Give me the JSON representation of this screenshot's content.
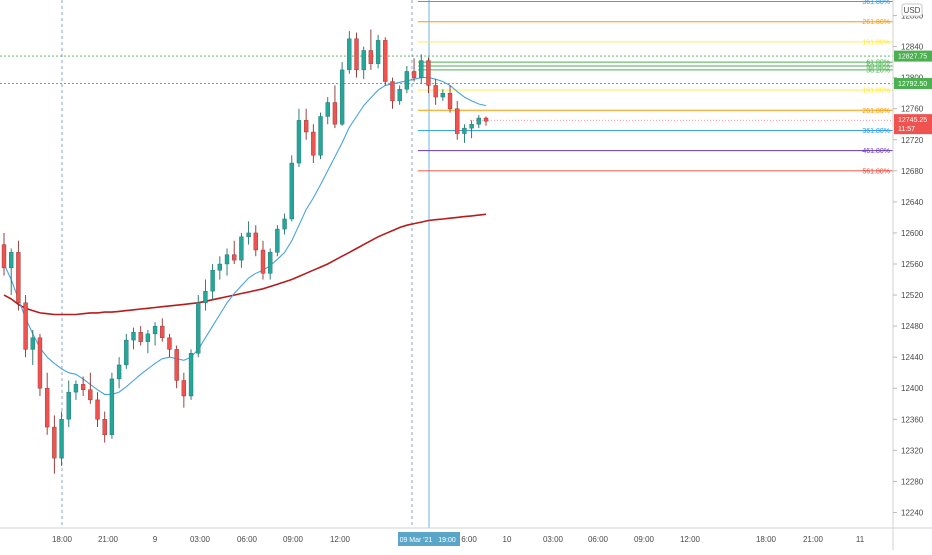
{
  "currency_label": "USD",
  "x_tick_labels": [
    "18:00",
    "21:00",
    "9",
    "03:00",
    "06:00",
    "09:00",
    "12:00",
    "19:00",
    "10",
    "03:00",
    "06:00",
    "09:00",
    "12:00",
    "18:00",
    "21:00",
    "11"
  ],
  "x_highlight_label": "09 Mar '21",
  "x_partial_label": "6:00",
  "colors": {
    "up": "#26a69a",
    "down": "#ef5350",
    "ma_fast": "#4aa3df",
    "ma_slow": "#b71c1c",
    "fib_blue": "#2196f3",
    "fib_orange": "#ff9800",
    "fib_yellow": "#ffeb3b",
    "fib_green": "#4caf50",
    "fib_purple": "#673ab7",
    "fib_red": "#f44336",
    "price_tag": "#ef5350",
    "tag_green": "#4caf50",
    "tag_blue": "#5aa6c9"
  },
  "chart_data": {
    "type": "candlestick",
    "symbol_currency": "USD",
    "ylim": [
      12220,
      12900
    ],
    "y_ticks": [
      12240,
      12280,
      12320,
      12360,
      12400,
      12440,
      12480,
      12520,
      12560,
      12600,
      12640,
      12680,
      12720,
      12760,
      12800,
      12840,
      12880
    ],
    "candles": [
      {
        "o": 12585,
        "h": 12600,
        "l": 12545,
        "c": 12555
      },
      {
        "o": 12555,
        "h": 12580,
        "l": 12520,
        "c": 12575
      },
      {
        "o": 12575,
        "h": 12590,
        "l": 12500,
        "c": 12510
      },
      {
        "o": 12510,
        "h": 12520,
        "l": 12440,
        "c": 12450
      },
      {
        "o": 12450,
        "h": 12475,
        "l": 12430,
        "c": 12465
      },
      {
        "o": 12465,
        "h": 12470,
        "l": 12390,
        "c": 12400
      },
      {
        "o": 12400,
        "h": 12420,
        "l": 12340,
        "c": 12350
      },
      {
        "o": 12350,
        "h": 12365,
        "l": 12290,
        "c": 12310
      },
      {
        "o": 12310,
        "h": 12370,
        "l": 12300,
        "c": 12360
      },
      {
        "o": 12360,
        "h": 12410,
        "l": 12350,
        "c": 12395
      },
      {
        "o": 12395,
        "h": 12410,
        "l": 12385,
        "c": 12405
      },
      {
        "o": 12405,
        "h": 12415,
        "l": 12390,
        "c": 12398
      },
      {
        "o": 12398,
        "h": 12420,
        "l": 12380,
        "c": 12385
      },
      {
        "o": 12385,
        "h": 12395,
        "l": 12350,
        "c": 12360
      },
      {
        "o": 12360,
        "h": 12370,
        "l": 12330,
        "c": 12340
      },
      {
        "o": 12340,
        "h": 12420,
        "l": 12335,
        "c": 12412
      },
      {
        "o": 12412,
        "h": 12440,
        "l": 12400,
        "c": 12430
      },
      {
        "o": 12430,
        "h": 12470,
        "l": 12425,
        "c": 12462
      },
      {
        "o": 12462,
        "h": 12478,
        "l": 12450,
        "c": 12472
      },
      {
        "o": 12472,
        "h": 12480,
        "l": 12455,
        "c": 12460
      },
      {
        "o": 12460,
        "h": 12475,
        "l": 12445,
        "c": 12470
      },
      {
        "o": 12470,
        "h": 12485,
        "l": 12455,
        "c": 12480
      },
      {
        "o": 12480,
        "h": 12490,
        "l": 12460,
        "c": 12465
      },
      {
        "o": 12465,
        "h": 12470,
        "l": 12440,
        "c": 12450
      },
      {
        "o": 12450,
        "h": 12455,
        "l": 12400,
        "c": 12410
      },
      {
        "o": 12410,
        "h": 12420,
        "l": 12375,
        "c": 12390
      },
      {
        "o": 12390,
        "h": 12450,
        "l": 12385,
        "c": 12445
      },
      {
        "o": 12445,
        "h": 12520,
        "l": 12440,
        "c": 12510
      },
      {
        "o": 12510,
        "h": 12540,
        "l": 12500,
        "c": 12525
      },
      {
        "o": 12525,
        "h": 12560,
        "l": 12515,
        "c": 12552
      },
      {
        "o": 12552,
        "h": 12570,
        "l": 12540,
        "c": 12560
      },
      {
        "o": 12560,
        "h": 12580,
        "l": 12545,
        "c": 12572
      },
      {
        "o": 12572,
        "h": 12590,
        "l": 12560,
        "c": 12565
      },
      {
        "o": 12565,
        "h": 12600,
        "l": 12555,
        "c": 12595
      },
      {
        "o": 12595,
        "h": 12615,
        "l": 12585,
        "c": 12600
      },
      {
        "o": 12600,
        "h": 12610,
        "l": 12570,
        "c": 12578
      },
      {
        "o": 12578,
        "h": 12590,
        "l": 12540,
        "c": 12548
      },
      {
        "o": 12548,
        "h": 12580,
        "l": 12540,
        "c": 12575
      },
      {
        "o": 12575,
        "h": 12610,
        "l": 12570,
        "c": 12605
      },
      {
        "o": 12605,
        "h": 12625,
        "l": 12598,
        "c": 12618
      },
      {
        "o": 12618,
        "h": 12700,
        "l": 12615,
        "c": 12690
      },
      {
        "o": 12690,
        "h": 12760,
        "l": 12685,
        "c": 12745
      },
      {
        "o": 12745,
        "h": 12760,
        "l": 12720,
        "c": 12730
      },
      {
        "o": 12730,
        "h": 12740,
        "l": 12690,
        "c": 12700
      },
      {
        "o": 12700,
        "h": 12755,
        "l": 12695,
        "c": 12750
      },
      {
        "o": 12750,
        "h": 12775,
        "l": 12740,
        "c": 12768
      },
      {
        "o": 12768,
        "h": 12790,
        "l": 12735,
        "c": 12740
      },
      {
        "o": 12740,
        "h": 12820,
        "l": 12738,
        "c": 12810
      },
      {
        "o": 12810,
        "h": 12860,
        "l": 12805,
        "c": 12850
      },
      {
        "o": 12850,
        "h": 12858,
        "l": 12800,
        "c": 12810
      },
      {
        "o": 12810,
        "h": 12840,
        "l": 12798,
        "c": 12835
      },
      {
        "o": 12835,
        "h": 12862,
        "l": 12810,
        "c": 12818
      },
      {
        "o": 12818,
        "h": 12855,
        "l": 12812,
        "c": 12848
      },
      {
        "o": 12848,
        "h": 12852,
        "l": 12790,
        "c": 12795
      },
      {
        "o": 12795,
        "h": 12800,
        "l": 12760,
        "c": 12770
      },
      {
        "o": 12770,
        "h": 12790,
        "l": 12765,
        "c": 12785
      },
      {
        "o": 12785,
        "h": 12815,
        "l": 12780,
        "c": 12808
      },
      {
        "o": 12808,
        "h": 12825,
        "l": 12795,
        "c": 12800
      },
      {
        "o": 12800,
        "h": 12830,
        "l": 12792,
        "c": 12822
      },
      {
        "o": 12822,
        "h": 12826,
        "l": 12780,
        "c": 12790
      },
      {
        "o": 12790,
        "h": 12798,
        "l": 12765,
        "c": 12775
      },
      {
        "o": 12775,
        "h": 12785,
        "l": 12770,
        "c": 12780
      },
      {
        "o": 12780,
        "h": 12790,
        "l": 12755,
        "c": 12760
      },
      {
        "o": 12760,
        "h": 12770,
        "l": 12720,
        "c": 12728
      },
      {
        "o": 12728,
        "h": 12740,
        "l": 12716,
        "c": 12735
      },
      {
        "o": 12735,
        "h": 12745,
        "l": 12722,
        "c": 12740
      },
      {
        "o": 12740,
        "h": 12752,
        "l": 12735,
        "c": 12748
      },
      {
        "o": 12748,
        "h": 12750,
        "l": 12738,
        "c": 12744
      }
    ],
    "ma_fast": [
      12560,
      12540,
      12515,
      12490,
      12470,
      12452,
      12440,
      12432,
      12425,
      12420,
      12418,
      12412,
      12405,
      12398,
      12392,
      12392,
      12395,
      12402,
      12410,
      12418,
      12425,
      12432,
      12438,
      12440,
      12438,
      12436,
      12440,
      12450,
      12465,
      12480,
      12495,
      12510,
      12522,
      12532,
      12542,
      12548,
      12552,
      12558,
      12566,
      12575,
      12590,
      12610,
      12630,
      12645,
      12662,
      12680,
      12698,
      12716,
      12736,
      12750,
      12764,
      12774,
      12784,
      12790,
      12792,
      12794,
      12796,
      12798,
      12800,
      12800,
      12798,
      12795,
      12790,
      12782,
      12775,
      12770,
      12766,
      12764
    ],
    "ma_slow": [
      12520,
      12515,
      12508,
      12503,
      12500,
      12497,
      12496,
      12495,
      12495,
      12495,
      12495,
      12496,
      12497,
      12497,
      12498,
      12498,
      12499,
      12500,
      12501,
      12502,
      12503,
      12504,
      12505,
      12506,
      12507,
      12508,
      12509,
      12510,
      12512,
      12514,
      12516,
      12518,
      12520,
      12522,
      12524,
      12526,
      12528,
      12531,
      12534,
      12537,
      12540,
      12544,
      12548,
      12552,
      12556,
      12560,
      12565,
      12570,
      12575,
      12580,
      12585,
      12590,
      12595,
      12599,
      12603,
      12607,
      12610,
      12612,
      12614,
      12616,
      12617,
      12618,
      12619,
      12620,
      12621,
      12622,
      12623,
      12624
    ],
    "fib_levels": [
      {
        "label": "361.80%",
        "price": 12898,
        "color_key": "fib_blue"
      },
      {
        "label": "261.80%",
        "price": 12872,
        "color_key": "fib_orange"
      },
      {
        "label": "161.80%",
        "price": 12846,
        "color_key": "fib_yellow"
      },
      {
        "label": "61.80%",
        "price": 12820,
        "color_key": "fib_green"
      },
      {
        "label": "50.00%",
        "price": 12815,
        "color_key": "fib_green"
      },
      {
        "label": "38.20%",
        "price": 12810,
        "color_key": "fib_green"
      },
      {
        "label": "161.80%",
        "price": 12784,
        "color_key": "fib_yellow"
      },
      {
        "label": "261.80%",
        "price": 12758,
        "color_key": "fib_orange"
      },
      {
        "label": "361.80%",
        "price": 12732,
        "color_key": "fib_blue"
      },
      {
        "label": "461.80%",
        "price": 12706,
        "color_key": "fib_purple"
      },
      {
        "label": "561.80%",
        "price": 12680,
        "color_key": "fib_red"
      }
    ],
    "price_tags": [
      {
        "label": "12827.75",
        "price": 12827.75,
        "color_key": "tag_green"
      },
      {
        "label": "12792.50",
        "price": 12792.5,
        "color_key": "tag_green"
      },
      {
        "label": "12745.25",
        "price": 12745.25,
        "color_key": "price_tag",
        "sub": "11:57"
      }
    ]
  }
}
